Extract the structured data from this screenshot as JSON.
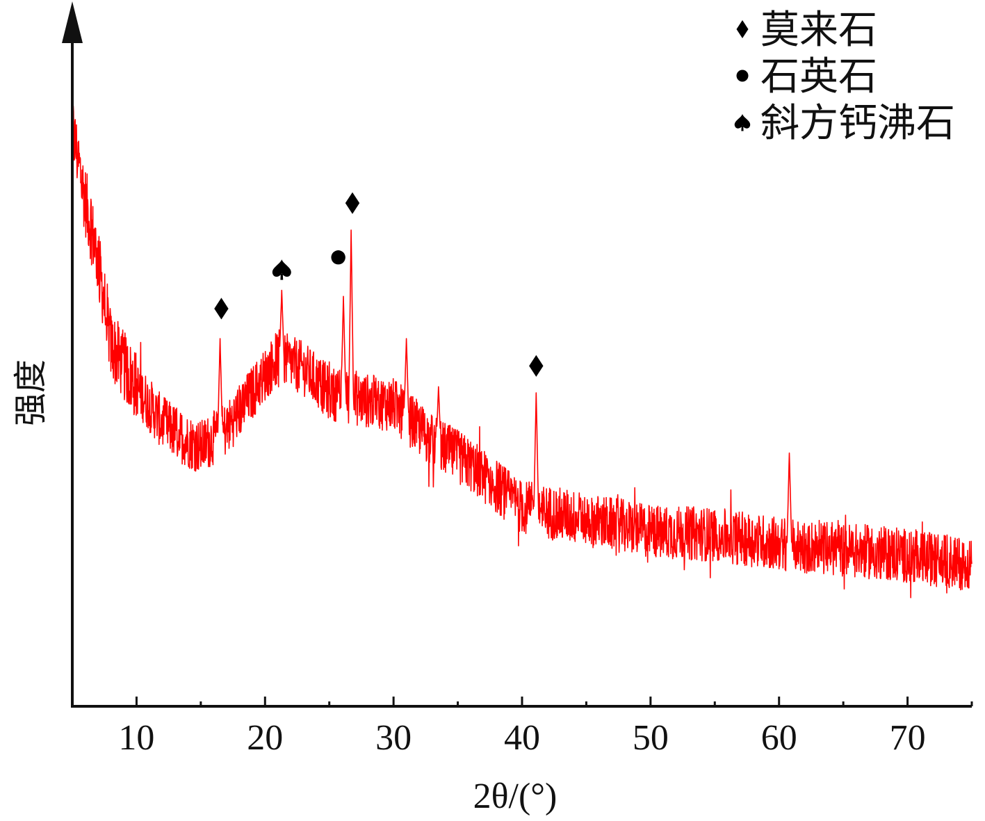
{
  "chart_data": {
    "type": "line",
    "xlabel": "2θ/(°)",
    "ylabel": "强度",
    "xlim": [
      5,
      75
    ],
    "ylim": [
      0,
      1100
    ],
    "xticks": [
      10,
      20,
      30,
      40,
      50,
      60,
      70
    ],
    "minor_xticks": [
      15,
      25,
      35,
      45,
      55,
      65,
      75
    ],
    "yticks": [],
    "grid": false,
    "legend_position": "top-right",
    "series_color": "#ff0000",
    "axis_color": "#111111",
    "legend": [
      {
        "label": "莫来石",
        "marker": "diamond"
      },
      {
        "label": "石英石",
        "marker": "circle"
      },
      {
        "label": "斜方钙沸石",
        "marker": "spade"
      }
    ],
    "baseline": {
      "x": [
        5,
        6,
        7,
        8,
        10,
        12,
        14,
        15,
        17,
        19,
        21,
        23,
        25,
        27,
        30,
        33,
        36,
        40,
        45,
        50,
        55,
        60,
        65,
        70,
        75
      ],
      "y": [
        960,
        840,
        740,
        600,
        530,
        470,
        440,
        430,
        460,
        520,
        580,
        560,
        520,
        510,
        500,
        440,
        400,
        330,
        310,
        290,
        285,
        270,
        260,
        250,
        235
      ]
    },
    "noise_amplitude": 45,
    "peaks": [
      {
        "x": 16.5,
        "y": 610
      },
      {
        "x": 21.3,
        "y": 690
      },
      {
        "x": 26.1,
        "y": 680
      },
      {
        "x": 26.7,
        "y": 790
      },
      {
        "x": 31.0,
        "y": 610
      },
      {
        "x": 33.5,
        "y": 530
      },
      {
        "x": 41.1,
        "y": 520
      },
      {
        "x": 60.8,
        "y": 420
      }
    ],
    "annotations": [
      {
        "x": 16.6,
        "y": 625,
        "marker": "diamond",
        "phase": "莫来石"
      },
      {
        "x": 21.3,
        "y": 690,
        "marker": "spade",
        "phase": "斜方钙沸石"
      },
      {
        "x": 25.7,
        "y": 710,
        "marker": "circle",
        "phase": "石英石"
      },
      {
        "x": 26.8,
        "y": 800,
        "marker": "diamond",
        "phase": "莫来石"
      },
      {
        "x": 41.1,
        "y": 530,
        "marker": "diamond",
        "phase": "莫来石"
      }
    ]
  }
}
